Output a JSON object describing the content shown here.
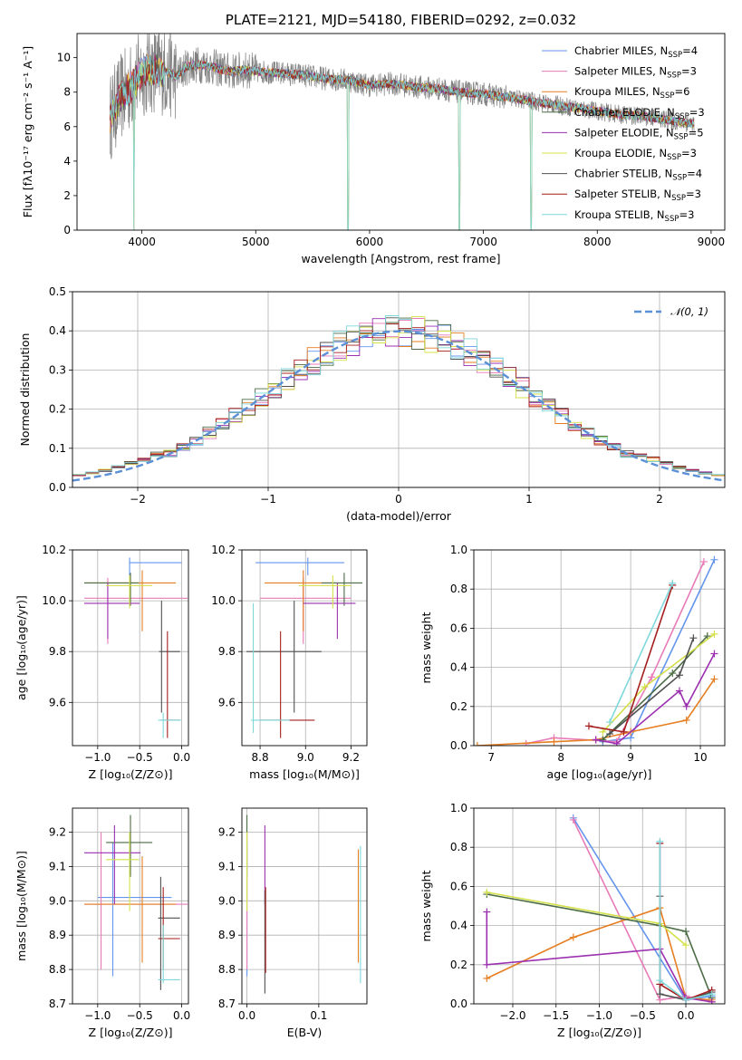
{
  "palette": [
    "#6495ed",
    "#e87ab8",
    "#e67e22",
    "#4a6b44",
    "#9b2fb0",
    "#d4e04a",
    "#505050",
    "#a51e1e",
    "#7ed8dc"
  ],
  "series_names": [
    {
      "base": "Chabrier MILES, N",
      "sub": "SSP",
      "tail": "=4"
    },
    {
      "base": "Salpeter MILES, N",
      "sub": "SSP",
      "tail": "=3"
    },
    {
      "base": "Kroupa MILES, N",
      "sub": "SSP",
      "tail": "=6"
    },
    {
      "base": "Chabrier ELODIE, N",
      "sub": "SSP",
      "tail": "=3"
    },
    {
      "base": "Salpeter ELODIE, N",
      "sub": "SSP",
      "tail": "=5"
    },
    {
      "base": "Kroupa ELODIE, N",
      "sub": "SSP",
      "tail": "=3"
    },
    {
      "base": "Chabrier STELIB, N",
      "sub": "SSP",
      "tail": "=4"
    },
    {
      "base": "Salpeter STELIB, N",
      "sub": "SSP",
      "tail": "=3"
    },
    {
      "base": "Kroupa STELIB, N",
      "sub": "SSP",
      "tail": "=3"
    }
  ],
  "chart_data": [
    {
      "id": "spectrum",
      "type": "line",
      "title": "PLATE=2121, MJD=54180, FIBERID=0292, z=0.032",
      "xlabel": "wavelength [Angstrom, rest frame]",
      "ylabel": "Flux [fλ10⁻¹⁷ erg cm⁻² s⁻¹ A⁻¹]",
      "xlim": [
        3430,
        9120
      ],
      "ylim": [
        0,
        11.4
      ],
      "xticks": [
        4000,
        5000,
        6000,
        7000,
        8000,
        9000
      ],
      "yticks": [
        0,
        2,
        4,
        6,
        8,
        10
      ],
      "legend": "top-right",
      "data_color": "#808080",
      "continuum": {
        "x": [
          3720,
          3800,
          3900,
          4000,
          4100,
          4200,
          4300,
          4400,
          4500,
          4600,
          4700,
          4800,
          4900,
          5000,
          5200,
          5400,
          5600,
          5800,
          6000,
          6200,
          6400,
          6600,
          6800,
          7000,
          7200,
          7400,
          7600,
          7800,
          8000,
          8200,
          8400,
          8600,
          8800
        ],
        "y": [
          6.5,
          7.6,
          8.3,
          9.1,
          9.3,
          9.2,
          8.9,
          9.5,
          9.6,
          9.5,
          9.3,
          9.2,
          9.3,
          9.2,
          9.1,
          9.0,
          8.8,
          8.7,
          8.4,
          8.5,
          8.3,
          8.2,
          8.0,
          7.9,
          7.7,
          7.5,
          7.3,
          7.1,
          6.9,
          6.7,
          6.6,
          6.4,
          6.2
        ]
      },
      "drops": [
        {
          "x": 3930,
          "y": 0.0
        },
        {
          "x": 5810,
          "y": 0.0
        },
        {
          "x": 6790,
          "y": 0.0
        },
        {
          "x": 7420,
          "y": 0.0
        }
      ]
    },
    {
      "id": "residuals",
      "type": "histogram",
      "xlabel": "(data-model)/error",
      "ylabel": "Normed distribution",
      "xlim": [
        -2.5,
        2.5
      ],
      "ylim": [
        0,
        0.5
      ],
      "xticks": [
        -2,
        -1,
        0,
        1,
        2
      ],
      "yticks": [
        0.0,
        0.1,
        0.2,
        0.3,
        0.4,
        0.5
      ],
      "bin_width": 0.1,
      "bins_start": -2.5,
      "reference": {
        "name": "𝒩(0, 1)",
        "mean": 0,
        "sigma": 1
      },
      "legend": "top-right"
    },
    {
      "id": "age_vs_Z",
      "type": "errorbar",
      "xlabel": "Z [log₁₀(Z/Z⊙)]",
      "ylabel": "age  [log₁₀(age/yr)]",
      "xlim": [
        -1.3,
        0.08
      ],
      "ylim": [
        9.43,
        10.2
      ],
      "xticks": [
        -1.0,
        -0.5,
        0.0
      ],
      "yticks": [
        9.6,
        9.8,
        10.0,
        10.2
      ],
      "points": [
        {
          "s": 0,
          "x": -0.62,
          "y": 10.15,
          "xe": [
            -0.62,
            0.0
          ],
          "ye": [
            10.1,
            10.17
          ]
        },
        {
          "s": 1,
          "x": -0.88,
          "y": 10.01,
          "xe": [
            -1.16,
            0.07
          ],
          "ye": [
            9.83,
            10.09
          ]
        },
        {
          "s": 2,
          "x": -0.47,
          "y": 10.07,
          "xe": [
            -1.16,
            -0.07
          ],
          "ye": [
            9.88,
            10.12
          ]
        },
        {
          "s": 3,
          "x": -0.61,
          "y": 10.07,
          "xe": [
            -1.16,
            -0.51
          ],
          "ye": [
            9.98,
            10.11
          ]
        },
        {
          "s": 4,
          "x": -0.88,
          "y": 9.99,
          "xe": [
            -1.16,
            -0.5
          ],
          "ye": [
            9.85,
            10.07
          ]
        },
        {
          "s": 5,
          "x": -0.62,
          "y": 10.06,
          "xe": [
            -0.9,
            -0.35
          ],
          "ye": [
            9.97,
            10.1
          ]
        },
        {
          "s": 6,
          "x": -0.24,
          "y": 9.8,
          "xe": [
            -0.27,
            -0.02
          ],
          "ye": [
            9.56,
            10.0
          ]
        },
        {
          "s": 7,
          "x": -0.17,
          "y": 9.53,
          "xe": [
            -0.25,
            -0.02
          ],
          "ye": [
            9.46,
            9.88
          ]
        },
        {
          "s": 8,
          "x": -0.22,
          "y": 9.53,
          "xe": [
            -0.28,
            -0.01
          ],
          "ye": [
            9.46,
            9.56
          ]
        }
      ]
    },
    {
      "id": "age_vs_mass",
      "type": "errorbar",
      "xlabel": "mass [log₁₀(M/M⊙)]",
      "ylabel": "",
      "xlim": [
        8.72,
        9.27
      ],
      "ylim": [
        9.43,
        10.2
      ],
      "xticks": [
        8.8,
        9.0,
        9.2
      ],
      "yticks": [
        9.6,
        9.8,
        10.0,
        10.2
      ],
      "points": [
        {
          "s": 0,
          "x": 9.01,
          "y": 10.15,
          "xe": [
            8.78,
            9.17
          ],
          "ye": [
            10.1,
            10.17
          ]
        },
        {
          "s": 1,
          "x": 8.99,
          "y": 10.01,
          "xe": [
            8.8,
            9.2
          ],
          "ye": [
            9.83,
            10.09
          ]
        },
        {
          "s": 2,
          "x": 8.99,
          "y": 10.07,
          "xe": [
            8.82,
            9.13
          ],
          "ye": [
            9.88,
            10.12
          ]
        },
        {
          "s": 3,
          "x": 9.17,
          "y": 10.07,
          "xe": [
            9.07,
            9.25
          ],
          "ye": [
            9.98,
            10.11
          ]
        },
        {
          "s": 4,
          "x": 9.14,
          "y": 9.99,
          "xe": [
            8.99,
            9.22
          ],
          "ye": [
            9.85,
            10.07
          ]
        },
        {
          "s": 5,
          "x": 9.12,
          "y": 10.06,
          "xe": [
            8.97,
            9.2
          ],
          "ye": [
            9.97,
            10.1
          ]
        },
        {
          "s": 6,
          "x": 8.95,
          "y": 9.8,
          "xe": [
            8.74,
            9.07
          ],
          "ye": [
            9.56,
            10.0
          ]
        },
        {
          "s": 7,
          "x": 8.89,
          "y": 9.53,
          "xe": [
            8.8,
            9.04
          ],
          "ye": [
            9.46,
            9.88
          ]
        },
        {
          "s": 8,
          "x": 8.77,
          "y": 9.53,
          "xe": [
            8.76,
            8.93
          ],
          "ye": [
            9.48,
            9.99
          ]
        }
      ]
    },
    {
      "id": "weight_vs_age",
      "type": "line",
      "xlabel": "age  [log₁₀(age/yr)]",
      "ylabel": "mass weight",
      "xlim": [
        6.75,
        10.35
      ],
      "ylim": [
        0,
        1.0
      ],
      "xticks": [
        7,
        8,
        9,
        10
      ],
      "yticks": [
        0.0,
        0.2,
        0.4,
        0.6,
        0.8,
        1.0
      ],
      "lines": [
        {
          "s": 0,
          "x": [
            8.6,
            9.0,
            10.2
          ],
          "y": [
            0.02,
            0.04,
            0.95
          ]
        },
        {
          "s": 1,
          "x": [
            7.5,
            7.9,
            8.8,
            9.3,
            10.05
          ],
          "y": [
            0.01,
            0.04,
            0.02,
            0.35,
            0.94
          ]
        },
        {
          "s": 2,
          "x": [
            6.8,
            7.9,
            8.5,
            9.0,
            9.8,
            10.2
          ],
          "y": [
            0.0,
            0.02,
            0.03,
            0.07,
            0.13,
            0.34
          ]
        },
        {
          "s": 3,
          "x": [
            8.6,
            9.6,
            10.1
          ],
          "y": [
            0.03,
            0.37,
            0.56
          ]
        },
        {
          "s": 4,
          "x": [
            8.5,
            8.8,
            9.7,
            9.8,
            10.2
          ],
          "y": [
            0.03,
            0.01,
            0.28,
            0.2,
            0.47
          ]
        },
        {
          "s": 5,
          "x": [
            8.6,
            9.2,
            10.2
          ],
          "y": [
            0.07,
            0.3,
            0.57
          ]
        },
        {
          "s": 6,
          "x": [
            8.7,
            9.7,
            9.9
          ],
          "y": [
            0.06,
            0.36,
            0.55
          ]
        },
        {
          "s": 7,
          "x": [
            8.4,
            8.9,
            9.6
          ],
          "y": [
            0.1,
            0.07,
            0.82
          ]
        },
        {
          "s": 8,
          "x": [
            8.7,
            9.6
          ],
          "y": [
            0.12,
            0.83
          ]
        }
      ]
    },
    {
      "id": "mass_vs_Z",
      "type": "errorbar",
      "xlabel": "Z [log₁₀(Z/Z⊙)]",
      "ylabel": "mass [log₁₀(M/M⊙)]",
      "xlim": [
        -1.3,
        0.08
      ],
      "ylim": [
        8.7,
        9.27
      ],
      "xticks": [
        -1.0,
        -0.5,
        0.0
      ],
      "yticks": [
        8.7,
        8.8,
        8.9,
        9.0,
        9.1,
        9.2
      ],
      "points": [
        {
          "s": 0,
          "x": -0.82,
          "y": 9.01,
          "xe": [
            -1.0,
            -0.12
          ],
          "ye": [
            8.78,
            9.17
          ]
        },
        {
          "s": 1,
          "x": -0.96,
          "y": 8.99,
          "xe": [
            -1.16,
            0.07
          ],
          "ye": [
            8.8,
            9.2
          ]
        },
        {
          "s": 2,
          "x": -0.47,
          "y": 8.99,
          "xe": [
            -1.16,
            -0.07
          ],
          "ye": [
            8.82,
            9.13
          ]
        },
        {
          "s": 3,
          "x": -0.61,
          "y": 9.17,
          "xe": [
            -0.9,
            -0.35
          ],
          "ye": [
            9.07,
            9.25
          ]
        },
        {
          "s": 4,
          "x": -0.8,
          "y": 9.14,
          "xe": [
            -1.16,
            -0.49
          ],
          "ye": [
            8.99,
            9.22
          ]
        },
        {
          "s": 5,
          "x": -0.62,
          "y": 9.12,
          "xe": [
            -0.9,
            -0.51
          ],
          "ye": [
            8.97,
            9.2
          ]
        },
        {
          "s": 6,
          "x": -0.25,
          "y": 8.95,
          "xe": [
            -0.28,
            -0.02
          ],
          "ye": [
            8.74,
            9.07
          ]
        },
        {
          "s": 7,
          "x": -0.22,
          "y": 8.89,
          "xe": [
            -0.28,
            -0.02
          ],
          "ye": [
            8.8,
            9.04
          ]
        },
        {
          "s": 8,
          "x": -0.22,
          "y": 8.77,
          "xe": [
            -0.28,
            -0.02
          ],
          "ye": [
            8.76,
            8.93
          ]
        }
      ]
    },
    {
      "id": "mass_vs_ebv",
      "type": "errorbar",
      "xlabel": "E(B-V)",
      "ylabel": "",
      "xlim": [
        -0.007,
        0.167
      ],
      "ylim": [
        8.7,
        9.27
      ],
      "xticks": [
        0.0,
        0.1
      ],
      "yticks": [
        8.7,
        8.8,
        8.9,
        9.0,
        9.1,
        9.2
      ],
      "points": [
        {
          "s": 0,
          "x": 0.0,
          "y": 9.01,
          "ye": [
            8.78,
            9.17
          ]
        },
        {
          "s": 1,
          "x": 0.0,
          "y": 8.99,
          "ye": [
            8.8,
            9.2
          ]
        },
        {
          "s": 2,
          "x": 0.155,
          "y": 8.99,
          "ye": [
            8.82,
            9.15
          ]
        },
        {
          "s": 3,
          "x": 0.0,
          "y": 9.17,
          "ye": [
            9.07,
            9.25
          ]
        },
        {
          "s": 4,
          "x": 0.025,
          "y": 9.14,
          "ye": [
            8.99,
            9.22
          ]
        },
        {
          "s": 5,
          "x": 0.0,
          "y": 9.12,
          "ye": [
            8.97,
            9.2
          ]
        },
        {
          "s": 6,
          "x": 0.025,
          "y": 8.95,
          "ye": [
            8.73,
            9.03
          ]
        },
        {
          "s": 7,
          "x": 0.026,
          "y": 8.89,
          "ye": [
            8.79,
            9.04
          ]
        },
        {
          "s": 8,
          "x": 0.158,
          "y": 8.77,
          "ye": [
            8.76,
            9.16
          ]
        }
      ]
    },
    {
      "id": "weight_vs_Z",
      "type": "line",
      "xlabel": "Z [log₁₀(Z/Z⊙)]",
      "ylabel": "mass weight",
      "xlim": [
        -2.45,
        0.45
      ],
      "ylim": [
        0,
        1.0
      ],
      "xticks": [
        -2.0,
        -1.5,
        -1.0,
        -0.5,
        0.0
      ],
      "yticks": [
        0.0,
        0.2,
        0.4,
        0.6,
        0.8,
        1.0
      ],
      "lines": [
        {
          "s": 0,
          "x": [
            -1.3,
            0.0,
            0.3
          ],
          "y": [
            0.95,
            0.02,
            0.04
          ]
        },
        {
          "s": 1,
          "x": [
            -1.3,
            -0.3,
            0.0,
            0.3
          ],
          "y": [
            0.94,
            0.02,
            0.04,
            0.01
          ]
        },
        {
          "s": 2,
          "x": [
            -2.3,
            -1.3,
            -0.3,
            0.0,
            0.3
          ],
          "y": [
            0.13,
            0.34,
            0.49,
            0.03,
            0.02
          ]
        },
        {
          "s": 3,
          "x": [
            -2.3,
            -0.3,
            0.0,
            0.3
          ],
          "y": [
            0.56,
            0.4,
            0.37,
            0.03
          ]
        },
        {
          "s": 4,
          "x": [
            -2.3,
            -2.3,
            -0.3,
            0.0,
            0.3
          ],
          "y": [
            0.47,
            0.2,
            0.28,
            0.03,
            0.01
          ]
        },
        {
          "s": 5,
          "x": [
            -2.3,
            -0.3,
            0.0
          ],
          "y": [
            0.57,
            0.41,
            0.3
          ]
        },
        {
          "s": 6,
          "x": [
            -0.3,
            -0.3,
            0.0,
            0.3
          ],
          "y": [
            0.55,
            0.05,
            0.02,
            0.06
          ]
        },
        {
          "s": 7,
          "x": [
            -0.3,
            -0.3,
            0.0,
            0.3
          ],
          "y": [
            0.82,
            0.1,
            0.02,
            0.07
          ]
        },
        {
          "s": 8,
          "x": [
            -0.3,
            -0.3,
            0.0,
            0.3
          ],
          "y": [
            0.83,
            0.12,
            0.02,
            0.05
          ]
        }
      ]
    }
  ]
}
